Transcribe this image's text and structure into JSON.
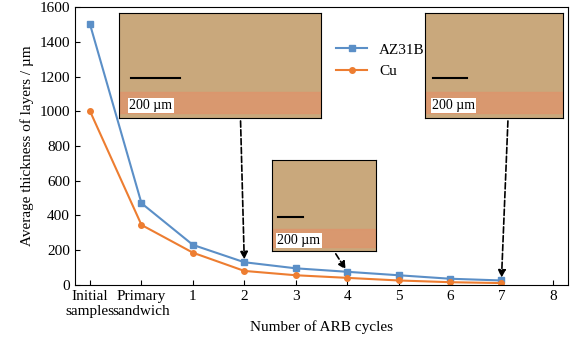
{
  "chart_data": {
    "type": "line",
    "x_label": "Number of ARB cycles",
    "y_label": "Average thickness of layers / µm",
    "categories": [
      "Initial\nsamples",
      "Primary\nsandwich",
      "1",
      "2",
      "3",
      "4",
      "5",
      "6",
      "7",
      "8"
    ],
    "series": [
      {
        "name": "AZ31B",
        "color": "#5b8fc7",
        "marker": "square",
        "line_style": "solid",
        "values": [
          1500,
          470,
          230,
          130,
          95,
          75,
          55,
          35,
          25,
          null
        ]
      },
      {
        "name": "Cu",
        "color": "#ed7d31",
        "marker": "circle",
        "line_style": "solid",
        "values": [
          1000,
          345,
          185,
          80,
          55,
          40,
          25,
          15,
          10,
          null
        ]
      }
    ],
    "ylim": [
      0,
      1600
    ],
    "yticks": [
      0,
      200,
      400,
      600,
      800,
      1000,
      1200,
      1400,
      1600
    ],
    "legend": "upper center",
    "annotations": [
      {
        "text": "200 µm",
        "x": "2"
      },
      {
        "text": "200 µm",
        "x": "4"
      },
      {
        "text": "200 µm",
        "x": "7"
      }
    ]
  }
}
